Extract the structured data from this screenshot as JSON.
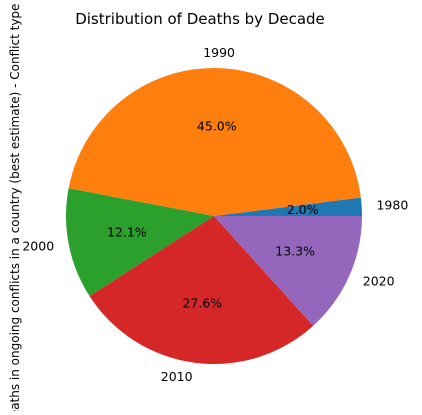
{
  "chart_data": {
    "type": "pie",
    "title": "Distribution of Deaths by Decade",
    "ylabel": "Deaths in ongoing conflicts in a country (best estimate) - Conflict type",
    "categories": [
      "1980",
      "1990",
      "2000",
      "2010",
      "2020"
    ],
    "values": [
      2.0,
      45.0,
      12.1,
      27.6,
      13.3
    ],
    "percent_labels": [
      "2.0%",
      "45.0%",
      "12.1%",
      "27.6%",
      "13.3%"
    ],
    "colors": [
      "#1f77b4",
      "#ff7f0e",
      "#2ca02c",
      "#d62728",
      "#9467bd"
    ],
    "start_angle_deg": 0,
    "direction": "counterclockwise"
  }
}
